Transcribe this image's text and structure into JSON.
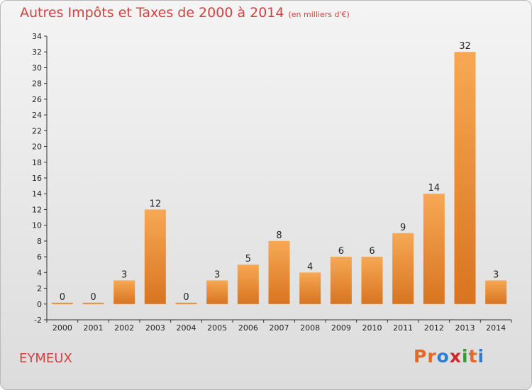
{
  "title": "Autres Impôts et Taxes de 2000 à 2014",
  "unit": "(en milliers d'€)",
  "commune": "EYMEUX",
  "logo": "Proxiti",
  "logo_colors": [
    "#e8681f",
    "#e8681f",
    "#2a7fd4",
    "#d4262b",
    "#3a9b35",
    "#e8681f",
    "#2a7fd4"
  ],
  "chart_data": {
    "type": "bar",
    "title": "Autres Impôts et Taxes de 2000 à 2014",
    "subtitle": "(en milliers d'€)",
    "categories": [
      "2000",
      "2001",
      "2002",
      "2003",
      "2004",
      "2005",
      "2006",
      "2007",
      "2008",
      "2009",
      "2010",
      "2011",
      "2012",
      "2013",
      "2014"
    ],
    "values": [
      0,
      0,
      3,
      12,
      0,
      3,
      5,
      8,
      4,
      6,
      6,
      9,
      14,
      32,
      3
    ],
    "ylim": [
      -2,
      34
    ],
    "yticks": [
      -2,
      0,
      2,
      4,
      6,
      8,
      10,
      12,
      14,
      16,
      18,
      20,
      22,
      24,
      26,
      28,
      30,
      32,
      34
    ],
    "grid": false,
    "colors": {
      "bar_light": "#f7a854",
      "bar_dark": "#d87420",
      "title": "#d2423f"
    }
  }
}
